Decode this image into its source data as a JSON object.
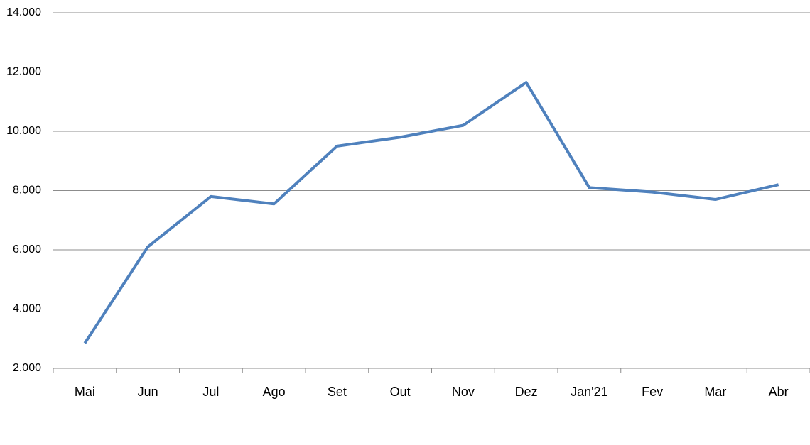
{
  "chart_data": {
    "type": "line",
    "categories": [
      "Mai",
      "Jun",
      "Jul",
      "Ago",
      "Set",
      "Out",
      "Nov",
      "Dez",
      "Jan'21",
      "Fev",
      "Mar",
      "Abr"
    ],
    "values": [
      2850,
      6100,
      7800,
      7550,
      9500,
      9800,
      10200,
      11650,
      8100,
      7950,
      7700,
      8200
    ],
    "color": "#4f81bd",
    "ylim": [
      2000,
      14000
    ],
    "yticks": [
      {
        "value": 2000,
        "label": "2.000"
      },
      {
        "value": 4000,
        "label": "4.000"
      },
      {
        "value": 6000,
        "label": "6.000"
      },
      {
        "value": 8000,
        "label": "8.000"
      },
      {
        "value": 10000,
        "label": "10.000"
      },
      {
        "value": 12000,
        "label": "12.000"
      },
      {
        "value": 14000,
        "label": "14.000"
      }
    ],
    "grid": true
  }
}
